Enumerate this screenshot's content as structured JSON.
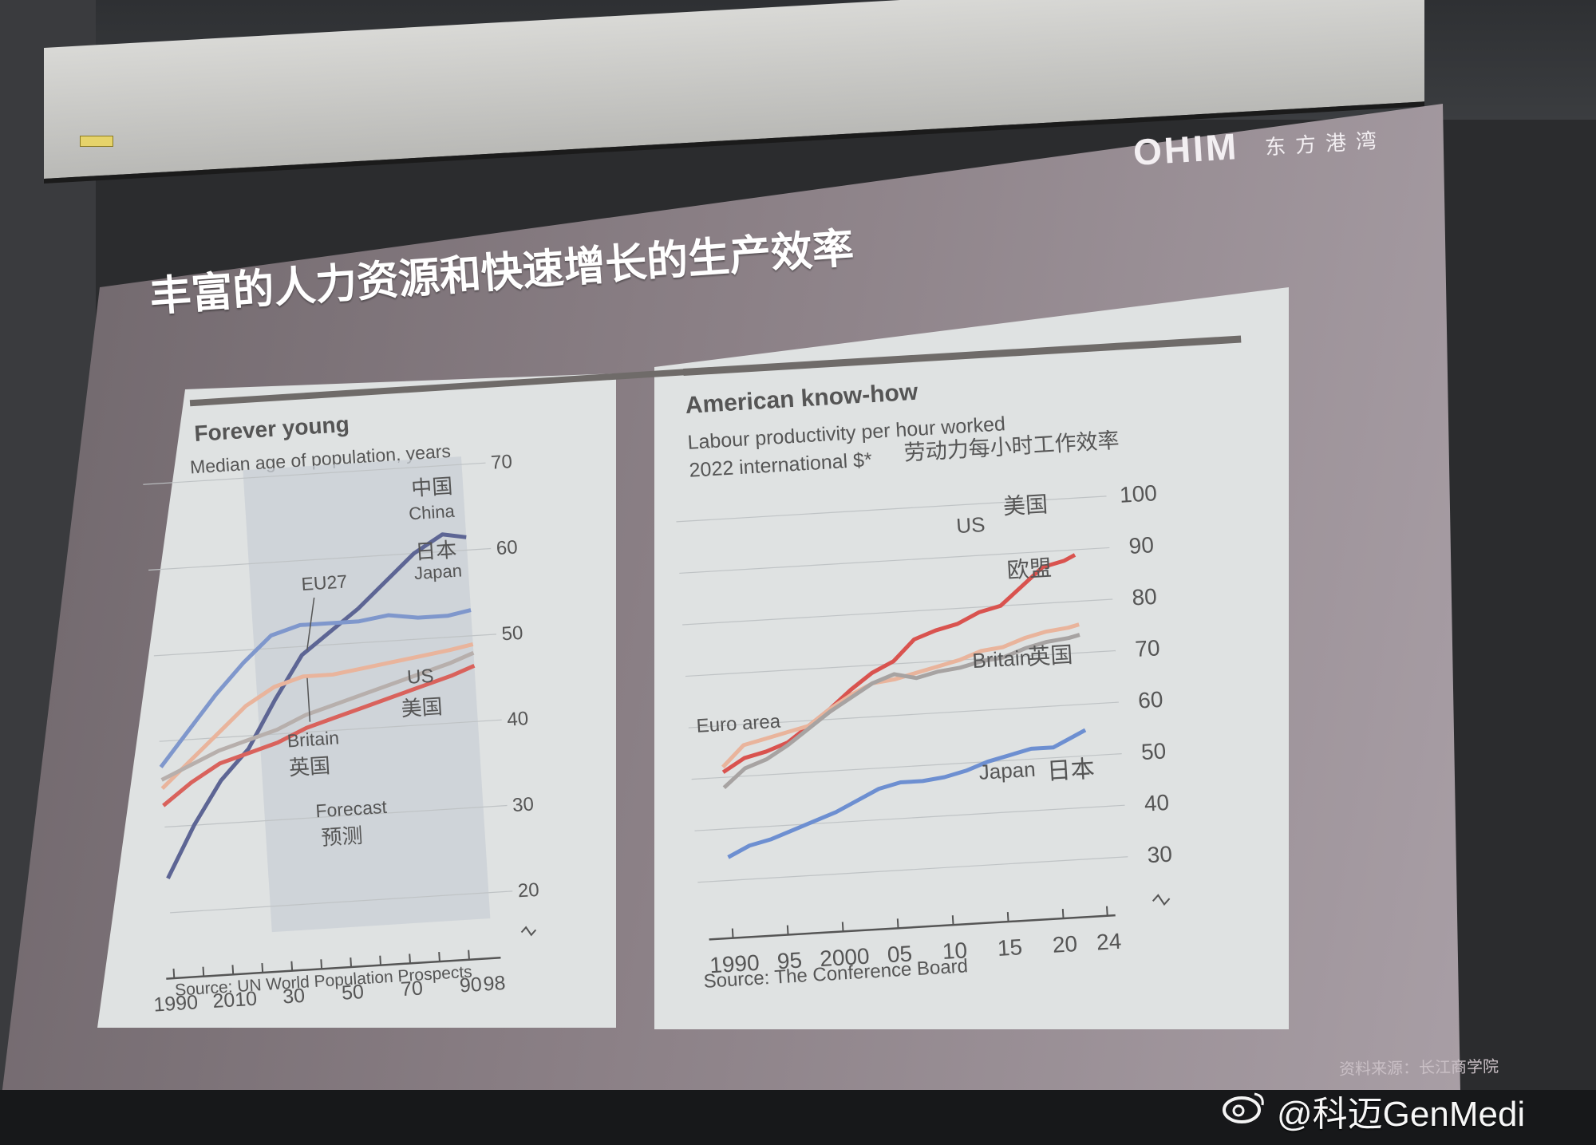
{
  "slide": {
    "logo": "OHIM",
    "logo_cn": "东方港湾",
    "title": "丰富的人力资源和快速增长的生产效率",
    "footer_source": "资料来源：长江商学院",
    "watermark": "@科迈GenMedi"
  },
  "chart_data": [
    {
      "type": "line",
      "title": "Forever young",
      "subtitle": "Median age of population, years",
      "source": "Source: UN World Population Prospects",
      "x_tick_labels": [
        "1990",
        "2010",
        "30",
        "50",
        "70",
        "90",
        "98"
      ],
      "y_tick_labels": [
        "20",
        "30",
        "40",
        "50",
        "60",
        "70"
      ],
      "xlim": [
        1990,
        2098
      ],
      "ylim": [
        17,
        70
      ],
      "forecast_start": 2024,
      "forecast_label": "Forecast",
      "forecast_label_cn": "预测",
      "x": [
        1990,
        2000,
        2010,
        2020,
        2030,
        2040,
        2050,
        2060,
        2070,
        2080,
        2090,
        2098
      ],
      "series": [
        {
          "name": "China",
          "name_cn": "中国",
          "color": "#5d6594",
          "values": [
            24,
            30,
            35,
            38.5,
            44,
            49,
            51.5,
            54,
            57,
            60,
            62,
            61.5
          ]
        },
        {
          "name": "Japan",
          "name_cn": "日本",
          "color": "#7f97cc",
          "values": [
            37,
            41,
            45,
            48.5,
            51.5,
            52.5,
            52.5,
            52.5,
            53,
            52.5,
            52.5,
            53
          ]
        },
        {
          "name": "EU27",
          "color": "#e9b49c",
          "values": [
            34.5,
            37.5,
            40.5,
            43.5,
            45.5,
            46.5,
            46.5,
            47,
            47.5,
            48,
            48.5,
            49
          ]
        },
        {
          "name": "Britain",
          "name_cn": "英国",
          "color": "#b7afac",
          "values": [
            35.5,
            37,
            38.5,
            39.5,
            40.5,
            42,
            43,
            44,
            45,
            46,
            47,
            48
          ]
        },
        {
          "name": "US",
          "name_cn": "美国",
          "color": "#d9625c",
          "values": [
            32.5,
            35,
            37,
            38,
            39,
            40.5,
            41.5,
            42.5,
            43.5,
            44.5,
            45.5,
            46.5
          ]
        }
      ]
    },
    {
      "type": "line",
      "title": "American know-how",
      "subtitle": "Labour productivity per hour worked",
      "subtitle_cn": "劳动力每小时工作效率",
      "subtitle2": "2022 international $*",
      "source": "Source: The Conference Board",
      "x_tick_labels": [
        "1990",
        "95",
        "2000",
        "05",
        "10",
        "15",
        "20",
        "24"
      ],
      "y_tick_labels": [
        "30",
        "40",
        "50",
        "60",
        "70",
        "80",
        "90",
        "100"
      ],
      "xlim": [
        1990,
        2024
      ],
      "ylim": [
        25,
        100
      ],
      "x": [
        1990,
        1992,
        1994,
        1996,
        1998,
        2000,
        2002,
        2004,
        2006,
        2008,
        2010,
        2012,
        2014,
        2016,
        2018,
        2020,
        2022,
        2023
      ],
      "series": [
        {
          "name": "US",
          "name_cn": "美国",
          "color": "#d9534f",
          "values": [
            51,
            53.5,
            54.5,
            56,
            59,
            62,
            65.5,
            68.5,
            70.5,
            74.5,
            76,
            77,
            79,
            80,
            83.5,
            87,
            88,
            89
          ]
        },
        {
          "name": "Euro area",
          "color": "#e9b49c",
          "values": [
            52,
            56,
            57,
            58,
            59,
            62,
            64.5,
            66.5,
            67,
            68,
            69,
            70,
            71.5,
            72,
            73.5,
            74.5,
            75,
            75.5
          ]
        },
        {
          "name": "Britain",
          "name_cn": "英国",
          "color": "#a7a3a2",
          "values": [
            48,
            51.5,
            53,
            55.5,
            58.5,
            61.5,
            64,
            66.5,
            68,
            67,
            68,
            68.5,
            69.5,
            70,
            71.5,
            72.5,
            73,
            73.5
          ]
        },
        {
          "name": "Japan",
          "name_cn": "日本",
          "color": "#6d8fd1",
          "values": [
            34.5,
            36.5,
            37.5,
            39,
            40.5,
            42,
            44,
            46,
            47,
            47,
            47.5,
            48.5,
            50,
            51,
            52,
            52,
            54,
            55
          ]
        }
      ],
      "label_cn_eu": "欧盟"
    }
  ]
}
